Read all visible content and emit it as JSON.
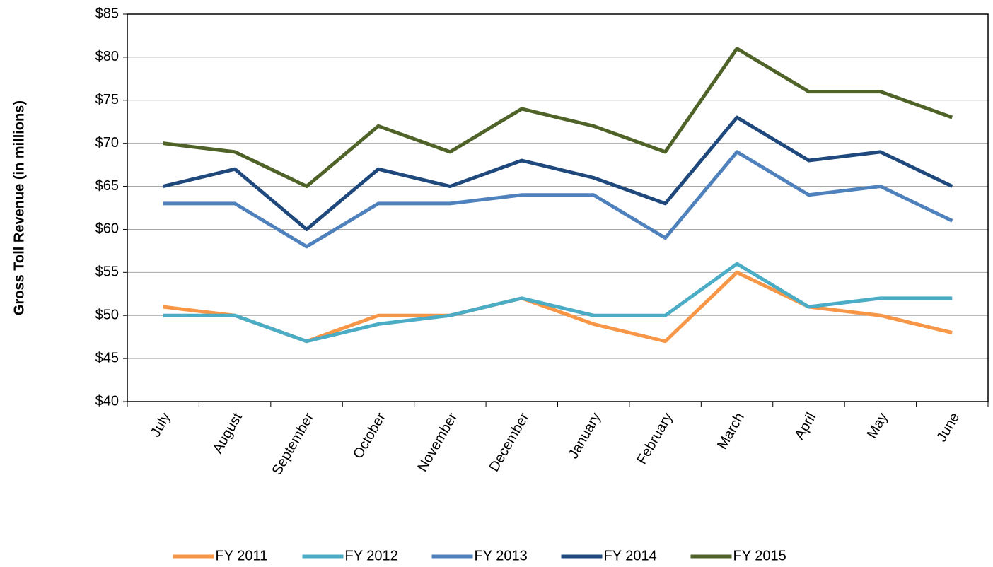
{
  "chart_data": {
    "type": "line",
    "y_label": "Gross Toll Revenue (in millions)",
    "categories": [
      "July",
      "August",
      "September",
      "October",
      "November",
      "December",
      "January",
      "February",
      "March",
      "April",
      "May",
      "June"
    ],
    "series": [
      {
        "name": "FY 2011",
        "color": "#f79646",
        "values": [
          51,
          50,
          47,
          50,
          50,
          52,
          49,
          47,
          55,
          51,
          50,
          48
        ]
      },
      {
        "name": "FY 2012",
        "color": "#4bacc6",
        "values": [
          50,
          50,
          47,
          49,
          50,
          52,
          50,
          50,
          56,
          51,
          52,
          52
        ]
      },
      {
        "name": "FY 2013",
        "color": "#4f81bd",
        "values": [
          63,
          63,
          58,
          63,
          63,
          64,
          64,
          59,
          69,
          64,
          65,
          61
        ]
      },
      {
        "name": "FY 2014",
        "color": "#1f497d",
        "values": [
          65,
          67,
          60,
          67,
          65,
          68,
          66,
          63,
          73,
          68,
          69,
          65
        ]
      },
      {
        "name": "FY 2015",
        "color": "#4f6228",
        "values": [
          70,
          69,
          65,
          72,
          69,
          74,
          72,
          69,
          81,
          76,
          76,
          73
        ]
      }
    ],
    "ylim": [
      40,
      85
    ],
    "yticks": [
      {
        "value": 40,
        "label": "$40"
      },
      {
        "value": 45,
        "label": "$45"
      },
      {
        "value": 50,
        "label": "$50"
      },
      {
        "value": 55,
        "label": "$55"
      },
      {
        "value": 60,
        "label": "$60"
      },
      {
        "value": 65,
        "label": "$65"
      },
      {
        "value": 70,
        "label": "$70"
      },
      {
        "value": 75,
        "label": "$75"
      },
      {
        "value": 80,
        "label": "$80"
      },
      {
        "value": 85,
        "label": "$85"
      }
    ],
    "grid": true,
    "legend": "bottom"
  }
}
